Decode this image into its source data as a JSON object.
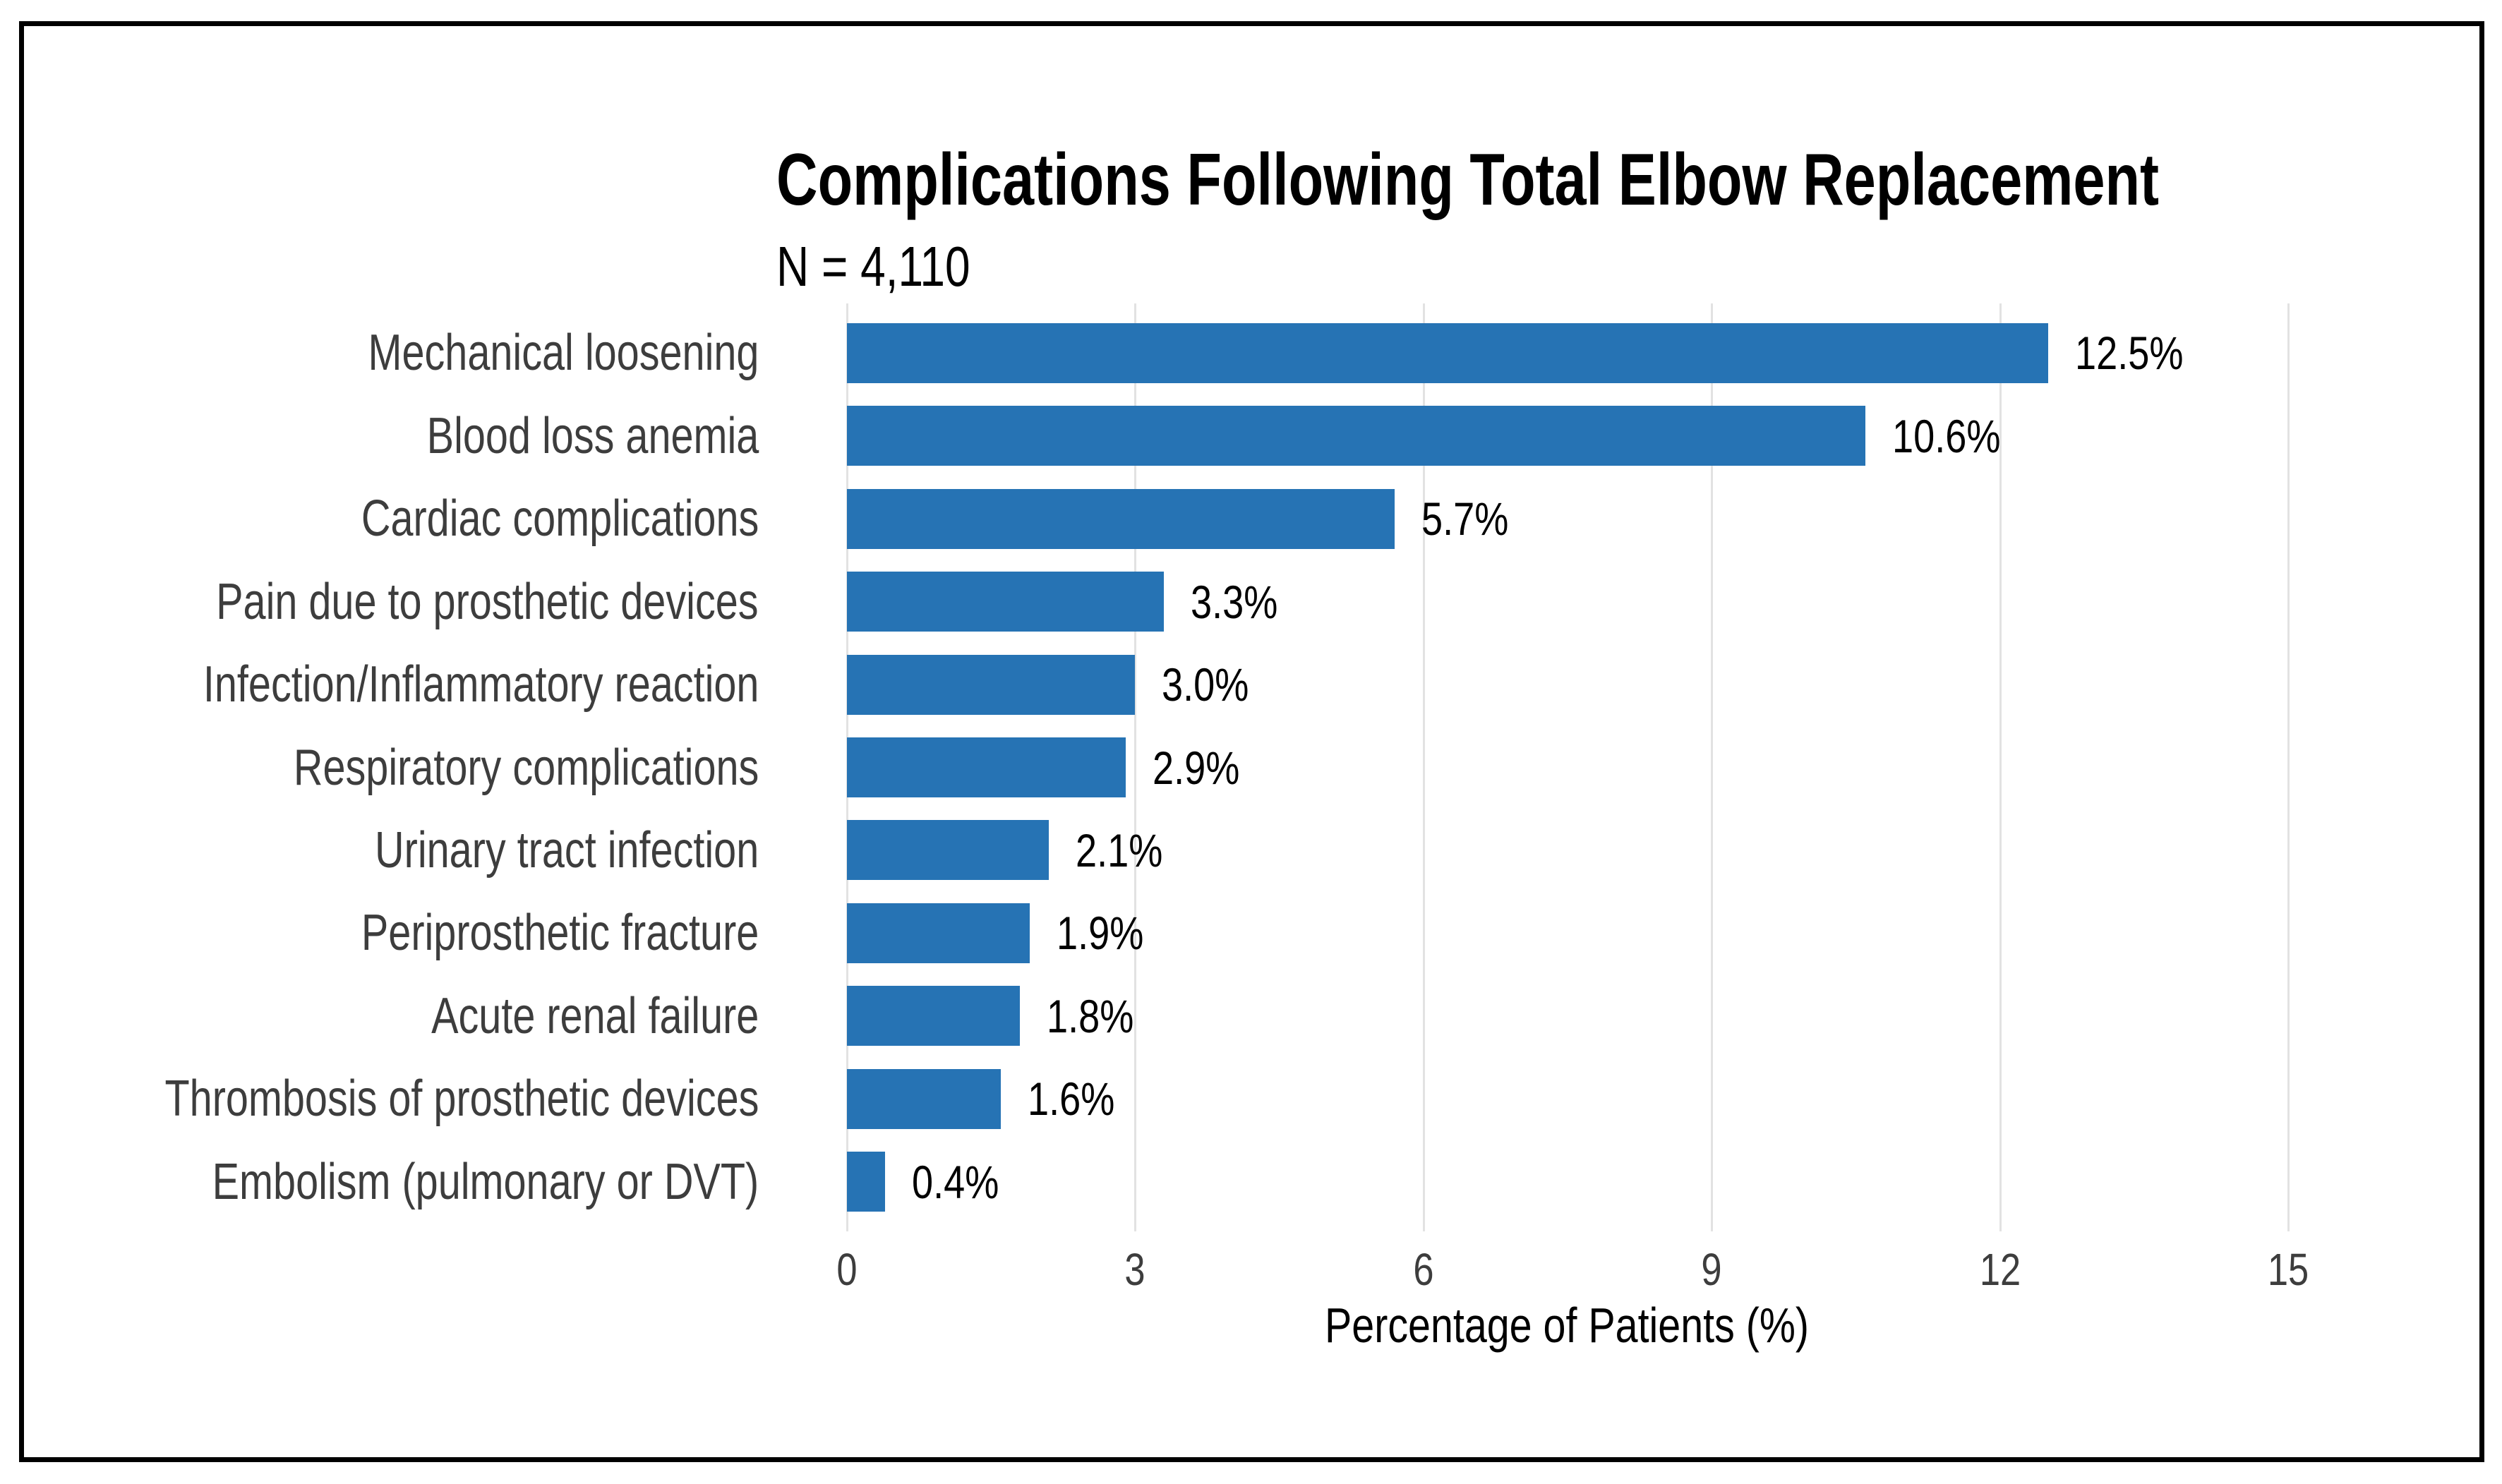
{
  "page": {
    "background": "#FFFFFF",
    "frame_border_color": "#000000"
  },
  "chart_data": {
    "type": "bar",
    "orientation": "horizontal",
    "title": "Complications Following Total Elbow Replacement",
    "subtitle": "N = 4,110",
    "xlabel": "Percentage of Patients (%)",
    "categories": [
      "Mechanical loosening",
      "Blood loss anemia",
      "Cardiac complications",
      "Pain due to prosthetic devices",
      "Infection/Inflammatory reaction",
      "Respiratory complications",
      "Urinary tract infection",
      "Periprosthetic fracture",
      "Acute renal failure",
      "Thrombosis of prosthetic devices",
      "Embolism (pulmonary or DVT)"
    ],
    "values": [
      12.5,
      10.6,
      5.7,
      3.3,
      3.0,
      2.9,
      2.1,
      1.9,
      1.8,
      1.6,
      0.4
    ],
    "value_labels": [
      "12.5%",
      "10.6%",
      "5.7%",
      "3.3%",
      "3.0%",
      "2.9%",
      "2.1%",
      "1.9%",
      "1.8%",
      "1.6%",
      "0.4%"
    ],
    "x_ticks": [
      0,
      3,
      6,
      9,
      12,
      15
    ],
    "x_tick_labels": [
      "0",
      "3",
      "6",
      "9",
      "12",
      "15"
    ],
    "xlim": [
      0,
      16.6
    ],
    "grid": "vertical-major-only",
    "legend": "none",
    "bar_color": "#2673B4",
    "gridline_color": "#E2E2E2",
    "axis_text_color": "#3D3D3D",
    "value_text_color": "#000000",
    "title_color": "#000000"
  }
}
